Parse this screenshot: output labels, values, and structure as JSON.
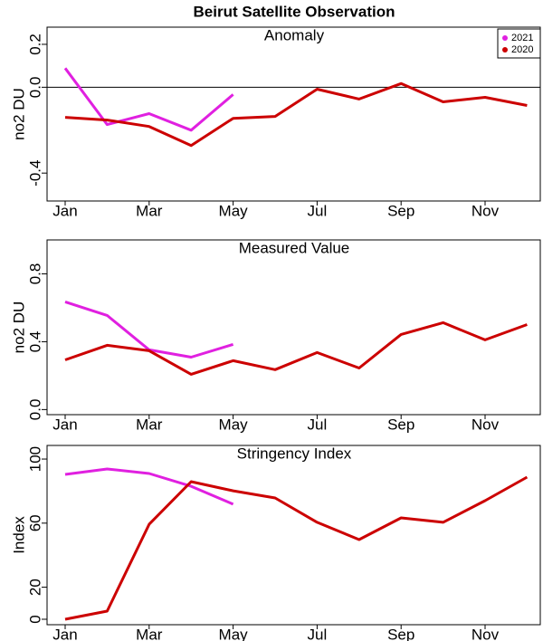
{
  "title": "Beirut Satellite Observation",
  "chart_data": [
    {
      "type": "line",
      "title": "Anomaly",
      "ylabel": "no2 DU",
      "categories": [
        "Jan",
        null,
        "Mar",
        null,
        "May",
        null,
        "Jul",
        null,
        "Sep",
        null,
        "Nov",
        null
      ],
      "series": [
        {
          "name": "2021",
          "color": "#e020e0",
          "values": [
            0.089,
            -0.174,
            -0.123,
            -0.2,
            -0.034,
            null,
            null,
            null,
            null,
            null,
            null,
            null
          ]
        },
        {
          "name": "2020",
          "color": "#cc0000",
          "values": [
            -0.14,
            -0.153,
            -0.183,
            -0.272,
            -0.145,
            -0.136,
            -0.009,
            -0.055,
            0.017,
            -0.068,
            -0.047,
            -0.085
          ]
        }
      ],
      "ylim": [
        -0.53,
        0.28
      ],
      "yticks": [
        -0.4,
        {
          "value": 0,
          "label": "0.0"
        },
        0.2
      ],
      "reference_line": 0,
      "legend": "top right"
    },
    {
      "type": "line",
      "title": "Measured Value",
      "ylabel": "no2 DU",
      "categories": [
        "Jan",
        null,
        "Mar",
        null,
        "May",
        null,
        "Jul",
        null,
        "Sep",
        null,
        "Nov",
        null
      ],
      "series": [
        {
          "color": "#e020e0",
          "values": [
            0.635,
            0.555,
            0.352,
            0.309,
            0.384,
            null,
            null,
            null,
            null,
            null,
            null,
            null
          ]
        },
        {
          "color": "#cc0000",
          "values": [
            0.293,
            0.379,
            0.347,
            0.208,
            0.288,
            0.235,
            0.336,
            0.245,
            0.443,
            0.512,
            0.411,
            0.501
          ]
        }
      ],
      "ylim": [
        -0.03,
        1.0
      ],
      "yticks": [
        {
          "value": 0,
          "label": "0.0"
        },
        0.4,
        0.8
      ]
    },
    {
      "type": "line",
      "title": "Stringency Index",
      "ylabel": "Index",
      "categories": [
        "Jan",
        null,
        "Mar",
        null,
        "May",
        null,
        "Jul",
        null,
        "Sep",
        null,
        "Nov",
        null
      ],
      "series": [
        {
          "color": "#e020e0",
          "values": [
            90.4,
            93.8,
            91,
            83,
            71.8,
            null,
            null,
            null,
            null,
            null,
            null,
            null
          ]
        },
        {
          "color": "#cc0000",
          "values": [
            0,
            5.1,
            59.3,
            85.9,
            80.2,
            75.7,
            60.5,
            49.7,
            63.3,
            60.5,
            74,
            88.7
          ]
        }
      ],
      "ylim": [
        -3.4,
        108.5
      ],
      "yticks": [
        0,
        20,
        60,
        100
      ]
    }
  ]
}
